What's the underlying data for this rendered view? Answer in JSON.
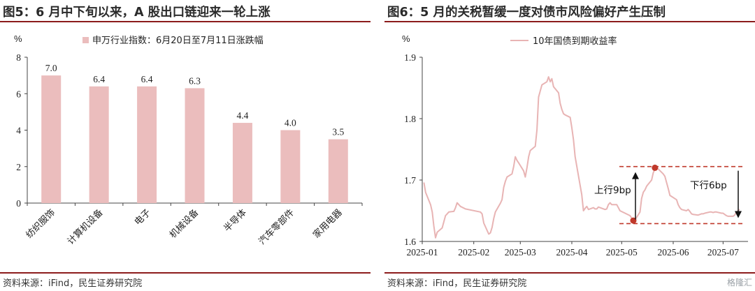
{
  "figures": [
    {
      "title": "图5：6 月中下旬以来，A 股出口链迎来一轮上涨",
      "source": "资料来源：iFind，民生证券研究院"
    },
    {
      "title": "图6：5 月的关税暂缓一度对债市风险偏好产生压制",
      "source": "资料来源：iFind，民生证券研究院"
    }
  ],
  "watermark": "格隆汇",
  "chart_data": [
    {
      "type": "bar",
      "unit": "%",
      "legend": "申万行业指数：6月20日至7月11日涨跌幅",
      "categories": [
        "纺织服饰",
        "计算机设备",
        "电子",
        "机械设备",
        "半导体",
        "汽车零部件",
        "家用电器"
      ],
      "values": [
        7.0,
        6.4,
        6.4,
        6.3,
        4.4,
        4.0,
        3.5
      ],
      "value_labels": [
        "7.0",
        "6.4",
        "6.4",
        "6.3",
        "4.4",
        "4.0",
        "3.5"
      ],
      "ylim": [
        0,
        8
      ],
      "yticks": [
        "0",
        "2",
        "4",
        "6",
        "8"
      ],
      "bar_color": "#ebbdbd",
      "grid": false
    },
    {
      "type": "line",
      "unit": "%",
      "legend": "10年国债到期收益率",
      "series": [
        {
          "name": "10年国债到期收益率",
          "color": "#e8b4b4",
          "x": [
            "2025-01-02",
            "2025-01-03",
            "2025-01-06",
            "2025-01-07",
            "2025-01-08",
            "2025-01-09",
            "2025-01-10",
            "2025-01-13",
            "2025-01-14",
            "2025-01-15",
            "2025-01-16",
            "2025-01-17",
            "2025-01-20",
            "2025-01-21",
            "2025-01-22",
            "2025-01-23",
            "2025-01-24",
            "2025-01-27",
            "2025-02-05",
            "2025-02-06",
            "2025-02-07",
            "2025-02-10",
            "2025-02-11",
            "2025-02-12",
            "2025-02-13",
            "2025-02-14",
            "2025-02-17",
            "2025-02-18",
            "2025-02-19",
            "2025-02-20",
            "2025-02-21",
            "2025-02-24",
            "2025-02-25",
            "2025-02-26",
            "2025-02-27",
            "2025-02-28",
            "2025-03-03",
            "2025-03-04",
            "2025-03-05",
            "2025-03-06",
            "2025-03-07",
            "2025-03-10",
            "2025-03-11",
            "2025-03-12",
            "2025-03-13",
            "2025-03-14",
            "2025-03-17",
            "2025-03-18",
            "2025-03-19",
            "2025-03-20",
            "2025-03-21",
            "2025-03-24",
            "2025-03-25",
            "2025-03-26",
            "2025-03-27",
            "2025-03-28",
            "2025-03-31",
            "2025-04-01",
            "2025-04-02",
            "2025-04-03",
            "2025-04-07",
            "2025-04-08",
            "2025-04-09",
            "2025-04-10",
            "2025-04-11",
            "2025-04-14",
            "2025-04-15",
            "2025-04-16",
            "2025-04-17",
            "2025-04-18",
            "2025-04-21",
            "2025-04-22",
            "2025-04-23",
            "2025-04-24",
            "2025-04-25",
            "2025-04-28",
            "2025-04-29",
            "2025-04-30",
            "2025-05-06",
            "2025-05-07",
            "2025-05-08",
            "2025-05-09",
            "2025-05-12",
            "2025-05-13",
            "2025-05-14",
            "2025-05-15",
            "2025-05-16",
            "2025-05-19",
            "2025-05-20",
            "2025-05-21",
            "2025-05-22",
            "2025-05-23",
            "2025-05-26",
            "2025-05-27",
            "2025-05-28",
            "2025-05-29",
            "2025-05-30",
            "2025-06-03",
            "2025-06-04",
            "2025-06-05",
            "2025-06-06",
            "2025-06-09",
            "2025-06-10",
            "2025-06-11",
            "2025-06-12",
            "2025-06-13",
            "2025-06-16",
            "2025-06-17",
            "2025-06-18",
            "2025-06-19",
            "2025-06-20",
            "2025-06-23",
            "2025-06-24",
            "2025-06-25",
            "2025-06-26",
            "2025-06-27",
            "2025-06-30",
            "2025-07-01",
            "2025-07-02",
            "2025-07-03",
            "2025-07-04",
            "2025-07-07",
            "2025-07-08",
            "2025-07-09",
            "2025-07-10",
            "2025-07-11"
          ],
          "values": [
            1.696,
            1.68,
            1.66,
            1.648,
            1.625,
            1.606,
            1.615,
            1.622,
            1.632,
            1.642,
            1.645,
            1.648,
            1.649,
            1.655,
            1.663,
            1.66,
            1.657,
            1.653,
            1.648,
            1.645,
            1.63,
            1.612,
            1.614,
            1.623,
            1.637,
            1.648,
            1.662,
            1.668,
            1.688,
            1.698,
            1.705,
            1.71,
            1.722,
            1.738,
            1.732,
            1.728,
            1.715,
            1.705,
            1.72,
            1.738,
            1.748,
            1.755,
            1.782,
            1.835,
            1.845,
            1.855,
            1.86,
            1.868,
            1.86,
            1.865,
            1.852,
            1.842,
            1.825,
            1.815,
            1.808,
            1.806,
            1.802,
            1.785,
            1.765,
            1.738,
            1.676,
            1.65,
            1.654,
            1.657,
            1.652,
            1.655,
            1.653,
            1.653,
            1.656,
            1.655,
            1.652,
            1.653,
            1.66,
            1.663,
            1.66,
            1.66,
            1.655,
            1.65,
            1.642,
            1.638,
            1.634,
            1.635,
            1.648,
            1.67,
            1.68,
            1.684,
            1.69,
            1.7,
            1.712,
            1.718,
            1.72,
            1.718,
            1.71,
            1.706,
            1.696,
            1.686,
            1.675,
            1.668,
            1.66,
            1.655,
            1.652,
            1.65,
            1.652,
            1.649,
            1.645,
            1.644,
            1.643,
            1.644,
            1.645,
            1.645,
            1.646,
            1.648,
            1.648,
            1.647,
            1.648,
            1.648,
            1.646,
            1.646,
            1.644,
            1.642,
            1.641,
            1.641,
            1.643,
            1.648,
            1.65,
            1.652
          ]
        }
      ],
      "x_ticks": [
        "2025-01",
        "2025-02",
        "2025-03",
        "2025-04",
        "2025-05",
        "2025-06",
        "2025-07"
      ],
      "ylim": [
        1.6,
        1.9
      ],
      "yticks": [
        "1.6",
        "1.7",
        "1.8",
        "1.9"
      ],
      "grid": false,
      "annotations": [
        {
          "text": "上行9bp",
          "arrow": "up"
        },
        {
          "text": "下行6bp",
          "arrow": "down"
        }
      ],
      "reference_lines": [
        1.629,
        1.722
      ],
      "markers": [
        {
          "x": "2025-05-08",
          "y": 1.634
        },
        {
          "x": "2025-05-21",
          "y": 1.72
        }
      ],
      "accent_color": "#c0392b"
    }
  ]
}
